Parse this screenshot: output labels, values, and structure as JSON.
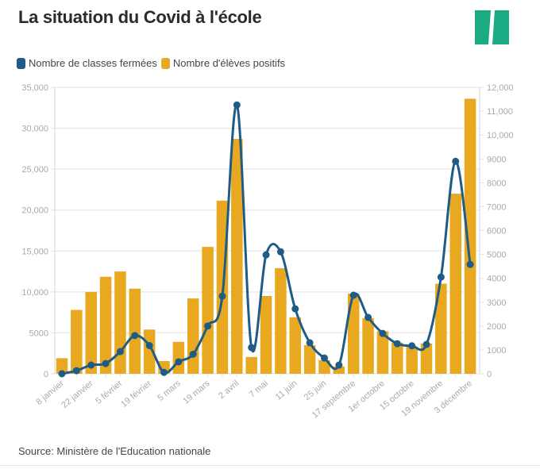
{
  "title": "La situation du Covid à l'école",
  "logo": {
    "icon": "huffpost-logo-icon",
    "color": "#1aab83"
  },
  "legend": [
    {
      "label": "Nombre de classes fermées",
      "color": "#1e5c85"
    },
    {
      "label": "Nombre d'élèves positifs",
      "color": "#e8a820"
    }
  ],
  "source": "Source: Ministère de l'Education nationale",
  "chart_data": {
    "type": "bar+line",
    "title": "La situation du Covid à l'école",
    "categories": [
      "8 janvier",
      "",
      "22 janvier",
      "",
      "5 février",
      "",
      "19 février",
      "",
      "5 mars",
      "",
      "19 mars",
      "",
      "2 avril",
      "",
      "7 mai",
      "",
      "11 juin",
      "",
      "25 juin",
      "",
      "17 septembre",
      "",
      "1er octobre",
      "",
      "15 octobre",
      "",
      "19 novembre",
      "",
      "3 décembre"
    ],
    "series": [
      {
        "name": "Nombre d'élèves positifs",
        "type": "bar",
        "axis": "left",
        "color": "#e8a820",
        "values": [
          1900,
          7800,
          10000,
          11850,
          12500,
          10400,
          5400,
          1550,
          3900,
          9200,
          15500,
          21150,
          28700,
          2050,
          9500,
          12900,
          6900,
          3500,
          1650,
          900,
          9800,
          6800,
          5200,
          3800,
          3300,
          3700,
          11000,
          22000,
          33600
        ]
      },
      {
        "name": "Nombre de classes fermées",
        "type": "line",
        "axis": "right",
        "color": "#1e5c85",
        "values": [
          0,
          130,
          365,
          430,
          930,
          1600,
          1180,
          60,
          500,
          820,
          2000,
          3250,
          11260,
          1100,
          4980,
          5110,
          2720,
          1300,
          660,
          365,
          3290,
          2360,
          1690,
          1260,
          1170,
          1230,
          4050,
          8900,
          4580
        ]
      }
    ],
    "y_left": {
      "min": 0,
      "max": 35000,
      "ticks": [
        "0",
        "5000",
        "10,000",
        "15,000",
        "20,000",
        "25,000",
        "30,000",
        "35,000"
      ],
      "tick_values": [
        0,
        5000,
        10000,
        15000,
        20000,
        25000,
        30000,
        35000
      ]
    },
    "y_right": {
      "min": 0,
      "max": 12000,
      "ticks": [
        "0",
        "1000",
        "2000",
        "3000",
        "4000",
        "5000",
        "6000",
        "7000",
        "8000",
        "9000",
        "10,000",
        "11,000",
        "12,000"
      ],
      "tick_values": [
        0,
        1000,
        2000,
        3000,
        4000,
        5000,
        6000,
        7000,
        8000,
        9000,
        10000,
        11000,
        12000
      ]
    },
    "xlabel": "",
    "ylabel": "",
    "grid": true,
    "legend_position": "top-left"
  }
}
